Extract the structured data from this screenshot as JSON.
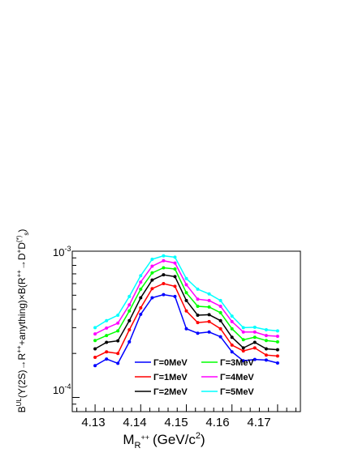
{
  "chart_data": {
    "type": "line",
    "xlabel": "M",
    "xlabel_sub": "R",
    "xlabel_sup": "++",
    "xlabel_units": "(GeV/c",
    "xlabel_units_sup": "2",
    "xlabel_units_close": ")",
    "ylabel_parts": {
      "b": "B",
      "b_sup": "UL",
      "mid": "(Υ(2S)→R",
      "r_sup": "++",
      "mid2": "+anything)×B(R",
      "r2_sup": "++",
      "arrow": "→D",
      "d_sup": "+",
      "dd": "D",
      "dd_sup": "(*)",
      "dd_sub": "s",
      "close": ")"
    },
    "yscale": "log",
    "xlim": [
      4.125,
      4.175
    ],
    "ylim": [
      8e-05,
      0.001
    ],
    "x_ticks": [
      "4.13",
      "4.14",
      "4.15",
      "4.16",
      "4.17"
    ],
    "x_tick_values": [
      4.13,
      4.14,
      4.15,
      4.16,
      4.17
    ],
    "y_tick_labels": [
      {
        "base": "10",
        "exp": "-3",
        "value": 0.001
      },
      {
        "base": "10",
        "exp": "-4",
        "value": 0.0001
      }
    ],
    "legend_placement": "bottom-center",
    "x": [
      4.13,
      4.1325,
      4.135,
      4.1375,
      4.14,
      4.1425,
      4.145,
      4.1475,
      4.15,
      4.1525,
      4.155,
      4.1575,
      4.16,
      4.1625,
      4.165,
      4.1675,
      4.17
    ],
    "series": [
      {
        "name": "Γ=0MeV",
        "color": "#0000ff",
        "values": [
          0.000165,
          0.000183,
          0.000171,
          0.00024,
          0.00037,
          0.00048,
          0.000505,
          0.00049,
          0.000295,
          0.000275,
          0.00028,
          0.00026,
          0.000205,
          0.000178,
          0.000182,
          0.00018,
          0.000172
        ]
      },
      {
        "name": "Γ=1MeV",
        "color": "#ff0000",
        "values": [
          0.000188,
          0.000205,
          0.0002,
          0.00029,
          0.00041,
          0.000555,
          0.0006,
          0.000575,
          0.00039,
          0.000325,
          0.00033,
          0.000295,
          0.000228,
          0.000208,
          0.000218,
          0.000195,
          0.000192
        ]
      },
      {
        "name": "Γ=2MeV",
        "color": "#000000",
        "values": [
          0.000215,
          0.000238,
          0.000244,
          0.000335,
          0.00048,
          0.000635,
          0.00069,
          0.00067,
          0.00046,
          0.000365,
          0.000368,
          0.000335,
          0.000258,
          0.000218,
          0.000238,
          0.000215,
          0.000212
        ]
      },
      {
        "name": "Γ=3MeV",
        "color": "#00ff00",
        "values": [
          0.000245,
          0.000265,
          0.000285,
          0.00039,
          0.00055,
          0.00071,
          0.00077,
          0.000755,
          0.00052,
          0.00042,
          0.000415,
          0.00038,
          0.000295,
          0.000248,
          0.000258,
          0.000245,
          0.00024
        ]
      },
      {
        "name": "Γ=4MeV",
        "color": "#ff00ff",
        "values": [
          0.000272,
          0.000298,
          0.000322,
          0.00043,
          0.000615,
          0.00079,
          0.00086,
          0.00083,
          0.00059,
          0.00047,
          0.00046,
          0.00042,
          0.00033,
          0.00028,
          0.00028,
          0.000265,
          0.000262
        ]
      },
      {
        "name": "Γ=5MeV",
        "color": "#00ffff",
        "values": [
          0.0003,
          0.000335,
          0.000365,
          0.00049,
          0.00068,
          0.00088,
          0.00093,
          0.00091,
          0.00065,
          0.00055,
          0.00051,
          0.00046,
          0.00036,
          0.0003,
          0.000302,
          0.00029,
          0.000285
        ]
      }
    ]
  }
}
